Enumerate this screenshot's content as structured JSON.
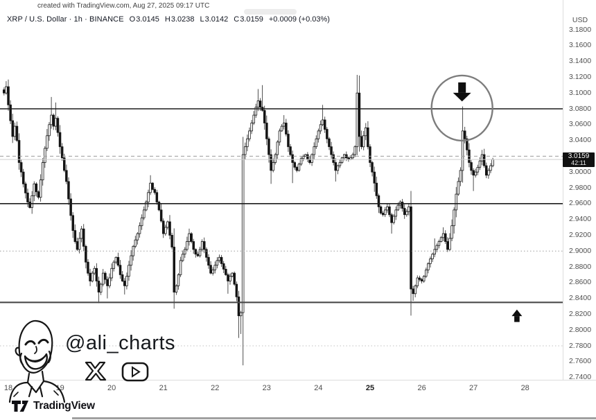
{
  "attribution": "created with TradingView.com, Aug 27, 2025 09:17 UTC",
  "symbol_header": {
    "title": "XRP / U.S. Dollar · 1h · BINANCE",
    "ohlc": {
      "o_label": "O",
      "o": "3.0145",
      "h_label": "H",
      "h": "3.0238",
      "l_label": "L",
      "l": "3.0142",
      "c_label": "C",
      "c": "3.0159",
      "change": "+0.0009 (+0.03%)"
    }
  },
  "price_axis": {
    "currency": "USD",
    "labels": [
      "3.1800",
      "3.1600",
      "3.1400",
      "3.1200",
      "3.1000",
      "3.0800",
      "3.0600",
      "3.0400",
      "3.0200",
      "3.0000",
      "2.9800",
      "2.9600",
      "2.9400",
      "2.9200",
      "2.9000",
      "2.8800",
      "2.8600",
      "2.8400",
      "2.8200",
      "2.8000",
      "2.7800",
      "2.7600",
      "2.7400"
    ],
    "price_tag": {
      "price": "3.0159",
      "countdown": "42:11"
    }
  },
  "time_axis": {
    "labels": [
      {
        "text": "18"
      },
      {
        "text": "19"
      },
      {
        "text": "20"
      },
      {
        "text": "21"
      },
      {
        "text": "22"
      },
      {
        "text": "23"
      },
      {
        "text": "24"
      },
      {
        "text": "25",
        "bold": true
      },
      {
        "text": "26"
      },
      {
        "text": "27"
      },
      {
        "text": "28"
      }
    ]
  },
  "watermark": {
    "handle": "@ali_charts",
    "icons": [
      {
        "name": "x-logo"
      },
      {
        "name": "youtube-logo"
      }
    ]
  },
  "footer": {
    "brand": "TradingView"
  },
  "colors": {
    "bull": "#ffffff",
    "bear": "#141414",
    "wick": "#3a3a3a",
    "level_dark": "#1c1c1c",
    "level_gray": "#4a4a4a",
    "quarter_gray": "#9b9b9b",
    "last_price_line": "#cfcfcf",
    "annotation_gray": "#7d7d7d",
    "tag_bg": "#111111"
  },
  "chart_data": {
    "type": "candlestick",
    "symbol": "XRP/USD",
    "exchange": "BINANCE",
    "interval": "1h",
    "x_axis_days": [
      "18",
      "19",
      "20",
      "21",
      "22",
      "23",
      "24",
      "25",
      "26",
      "27",
      "28"
    ],
    "y_axis_range": [
      2.74,
      3.18
    ],
    "last_price": 3.0159,
    "levels": [
      {
        "price": 3.08,
        "style": "solid",
        "color": "#1c1c1c",
        "width": 1.6,
        "role": "resistance-line"
      },
      {
        "price": 2.96,
        "style": "solid",
        "color": "#1c1c1c",
        "width": 1.6,
        "role": "support-line"
      },
      {
        "price": 2.835,
        "style": "solid",
        "color": "#4a4a4a",
        "width": 2.2,
        "role": "support-line"
      },
      {
        "price": 3.02,
        "style": "dashed",
        "color": "#9b9b9b",
        "width": 1,
        "role": "quarter-level"
      },
      {
        "price": 2.9,
        "style": "dotted",
        "color": "#9b9b9b",
        "width": 1,
        "role": "quarter-level"
      },
      {
        "price": 2.78,
        "style": "dotted",
        "color": "#c0c0c0",
        "width": 1,
        "role": "quarter-level"
      },
      {
        "price": 3.0159,
        "style": "solid",
        "color": "#cfcfcf",
        "width": 1,
        "role": "last-price-line"
      }
    ],
    "annotations": {
      "circle": {
        "hour": 210.7,
        "price": 3.081,
        "arrow": "down"
      },
      "arrow_up": {
        "hour": 236.2,
        "price": 2.826
      }
    },
    "waypoints": [
      [
        -2,
        3.1
      ],
      [
        -1,
        3.108
      ],
      [
        0,
        3.085
      ],
      [
        1,
        3.065
      ],
      [
        2,
        3.045
      ],
      [
        3,
        3.058
      ],
      [
        4,
        3.04
      ],
      [
        5,
        3.012
      ],
      [
        6,
        3.0
      ],
      [
        7,
        2.985
      ],
      [
        9,
        2.962
      ],
      [
        10,
        2.955
      ],
      [
        11,
        2.97
      ],
      [
        12,
        2.985
      ],
      [
        13,
        2.975
      ],
      [
        14,
        2.968
      ],
      [
        15,
        2.99
      ],
      [
        16,
        3.012
      ],
      [
        17,
        3.03
      ],
      [
        18,
        3.046
      ],
      [
        19,
        3.06
      ],
      [
        20,
        3.072
      ],
      [
        21,
        3.058
      ],
      [
        22,
        3.068
      ],
      [
        23,
        3.05
      ],
      [
        24,
        3.032
      ],
      [
        25,
        3.018
      ],
      [
        26,
        3.002
      ],
      [
        27,
        2.988
      ],
      [
        28,
        2.966
      ],
      [
        29,
        2.945
      ],
      [
        30,
        2.926
      ],
      [
        31,
        2.912
      ],
      [
        32,
        2.902
      ],
      [
        33,
        2.916
      ],
      [
        34,
        2.928
      ],
      [
        35,
        2.906
      ],
      [
        36,
        2.886
      ],
      [
        37,
        2.872
      ],
      [
        38,
        2.862
      ],
      [
        39,
        2.872
      ],
      [
        40,
        2.878
      ],
      [
        41,
        2.862
      ],
      [
        42,
        2.848
      ],
      [
        43,
        2.858
      ],
      [
        44,
        2.872
      ],
      [
        45,
        2.864
      ],
      [
        46,
        2.856
      ],
      [
        47,
        2.866
      ],
      [
        48,
        2.878
      ],
      [
        49,
        2.886
      ],
      [
        50,
        2.892
      ],
      [
        51,
        2.882
      ],
      [
        52,
        2.87
      ],
      [
        53,
        2.862
      ],
      [
        54,
        2.856
      ],
      [
        55,
        2.868
      ],
      [
        56,
        2.882
      ],
      [
        57,
        2.894
      ],
      [
        58,
        2.906
      ],
      [
        59,
        2.914
      ],
      [
        60,
        2.922
      ],
      [
        61,
        2.932
      ],
      [
        62,
        2.942
      ],
      [
        63,
        2.952
      ],
      [
        64,
        2.962
      ],
      [
        65,
        2.974
      ],
      [
        66,
        2.986
      ],
      [
        67,
        2.978
      ],
      [
        68,
        2.974
      ],
      [
        69,
        2.962
      ],
      [
        70,
        2.952
      ],
      [
        71,
        2.938
      ],
      [
        72,
        2.922
      ],
      [
        73,
        2.93
      ],
      [
        74,
        2.937
      ],
      [
        75,
        2.92
      ],
      [
        76,
        2.905
      ],
      [
        77,
        2.848
      ],
      [
        78,
        2.856
      ],
      [
        79,
        2.87
      ],
      [
        80,
        2.888
      ],
      [
        81,
        2.896
      ],
      [
        82,
        2.902
      ],
      [
        83,
        2.912
      ],
      [
        84,
        2.922
      ],
      [
        85,
        2.912
      ],
      [
        86,
        2.902
      ],
      [
        87,
        2.896
      ],
      [
        88,
        2.894
      ],
      [
        89,
        2.902
      ],
      [
        90,
        2.912
      ],
      [
        91,
        2.902
      ],
      [
        92,
        2.892
      ],
      [
        93,
        2.882
      ],
      [
        94,
        2.872
      ],
      [
        95,
        2.876
      ],
      [
        96,
        2.882
      ],
      [
        97,
        2.888
      ],
      [
        98,
        2.892
      ],
      [
        99,
        2.884
      ],
      [
        100,
        2.877
      ],
      [
        101,
        2.87
      ],
      [
        102,
        2.862
      ],
      [
        103,
        2.868
      ],
      [
        104,
        2.872
      ],
      [
        105,
        2.858
      ],
      [
        106,
        2.842
      ],
      [
        107,
        2.818
      ],
      [
        108,
        2.822
      ],
      [
        109,
        3.022
      ],
      [
        110,
        3.032
      ],
      [
        111,
        3.042
      ],
      [
        112,
        3.052
      ],
      [
        113,
        3.062
      ],
      [
        114,
        3.072
      ],
      [
        115,
        3.082
      ],
      [
        116,
        3.09
      ],
      [
        117,
        3.082
      ],
      [
        118,
        3.078
      ],
      [
        119,
        3.062
      ],
      [
        120,
        3.042
      ],
      [
        121,
        3.022
      ],
      [
        122,
        3.002
      ],
      [
        123,
        3.012
      ],
      [
        124,
        3.022
      ],
      [
        125,
        3.038
      ],
      [
        126,
        3.052
      ],
      [
        127,
        3.058
      ],
      [
        128,
        3.062
      ],
      [
        129,
        3.048
      ],
      [
        130,
        3.032
      ],
      [
        131,
        3.022
      ],
      [
        132,
        3.012
      ],
      [
        133,
        3.006
      ],
      [
        134,
        3.002
      ],
      [
        135,
        3.01
      ],
      [
        136,
        3.017
      ],
      [
        137,
        3.02
      ],
      [
        138,
        3.022
      ],
      [
        139,
        3.016
      ],
      [
        140,
        3.012
      ],
      [
        141,
        3.022
      ],
      [
        142,
        3.032
      ],
      [
        143,
        3.042
      ],
      [
        144,
        3.052
      ],
      [
        145,
        3.06
      ],
      [
        146,
        3.066
      ],
      [
        147,
        3.054
      ],
      [
        148,
        3.042
      ],
      [
        149,
        3.032
      ],
      [
        150,
        3.022
      ],
      [
        151,
        3.012
      ],
      [
        152,
        3.002
      ],
      [
        153,
        3.008
      ],
      [
        154,
        3.012
      ],
      [
        155,
        3.018
      ],
      [
        156,
        3.022
      ],
      [
        157,
        3.018
      ],
      [
        158,
        3.016
      ],
      [
        159,
        3.018
      ],
      [
        160,
        3.022
      ],
      [
        161,
        3.032
      ],
      [
        162,
        3.1
      ],
      [
        163,
        3.045
      ],
      [
        164,
        3.032
      ],
      [
        165,
        3.046
      ],
      [
        166,
        3.056
      ],
      [
        167,
        3.032
      ],
      [
        168,
        3.012
      ],
      [
        169,
        3.0
      ],
      [
        170,
        2.986
      ],
      [
        171,
        2.97
      ],
      [
        172,
        2.956
      ],
      [
        173,
        2.948
      ],
      [
        174,
        2.946
      ],
      [
        175,
        2.952
      ],
      [
        176,
        2.956
      ],
      [
        177,
        2.946
      ],
      [
        178,
        2.936
      ],
      [
        179,
        2.944
      ],
      [
        180,
        2.952
      ],
      [
        181,
        2.958
      ],
      [
        182,
        2.962
      ],
      [
        183,
        2.954
      ],
      [
        184,
        2.946
      ],
      [
        185,
        2.95
      ],
      [
        186,
        2.956
      ],
      [
        187,
        2.852
      ],
      [
        188,
        2.846
      ],
      [
        189,
        2.856
      ],
      [
        190,
        2.866
      ],
      [
        191,
        2.864
      ],
      [
        192,
        2.862
      ],
      [
        193,
        2.868
      ],
      [
        194,
        2.876
      ],
      [
        195,
        2.884
      ],
      [
        196,
        2.89
      ],
      [
        197,
        2.896
      ],
      [
        198,
        2.902
      ],
      [
        199,
        2.907
      ],
      [
        200,
        2.912
      ],
      [
        201,
        2.917
      ],
      [
        202,
        2.922
      ],
      [
        203,
        2.912
      ],
      [
        204,
        2.902
      ],
      [
        205,
        2.916
      ],
      [
        206,
        2.932
      ],
      [
        207,
        2.952
      ],
      [
        208,
        2.972
      ],
      [
        209,
        2.988
      ],
      [
        210,
        3.002
      ],
      [
        211,
        3.052
      ],
      [
        212,
        3.042
      ],
      [
        213,
        3.028
      ],
      [
        214,
        3.012
      ],
      [
        215,
        3.002
      ],
      [
        216,
        2.996
      ],
      [
        217,
        3.0
      ],
      [
        218,
        3.006
      ],
      [
        219,
        3.014
      ],
      [
        220,
        3.022
      ],
      [
        221,
        3.008
      ],
      [
        222,
        2.996
      ],
      [
        223,
        3.002
      ],
      [
        224,
        3.008
      ],
      [
        225,
        3.0159
      ]
    ],
    "wicks": [
      [
        -1,
        3.115,
        null
      ],
      [
        20,
        3.095,
        null
      ],
      [
        22,
        3.088,
        null
      ],
      [
        42,
        null,
        2.834
      ],
      [
        46,
        null,
        2.84
      ],
      [
        54,
        null,
        2.845
      ],
      [
        66,
        2.996,
        null
      ],
      [
        77,
        null,
        2.827
      ],
      [
        102,
        null,
        2.846
      ],
      [
        107,
        null,
        2.79
      ],
      [
        108,
        null,
        2.795
      ],
      [
        116,
        3.105,
        null
      ],
      [
        118,
        3.11,
        null
      ],
      [
        122,
        null,
        2.985
      ],
      [
        128,
        3.072,
        null
      ],
      [
        132,
        null,
        2.986
      ],
      [
        146,
        3.085,
        null
      ],
      [
        152,
        null,
        2.988
      ],
      [
        162,
        3.123,
        null
      ],
      [
        166,
        3.062,
        null
      ],
      [
        170,
        null,
        2.975
      ],
      [
        178,
        null,
        2.922
      ],
      [
        187,
        null,
        2.836
      ],
      [
        188,
        null,
        2.837
      ],
      [
        198,
        2.916,
        null
      ],
      [
        202,
        2.93,
        null
      ],
      [
        211,
        3.083,
        null
      ],
      [
        216,
        null,
        2.976
      ],
      [
        220,
        3.028,
        null
      ]
    ]
  }
}
